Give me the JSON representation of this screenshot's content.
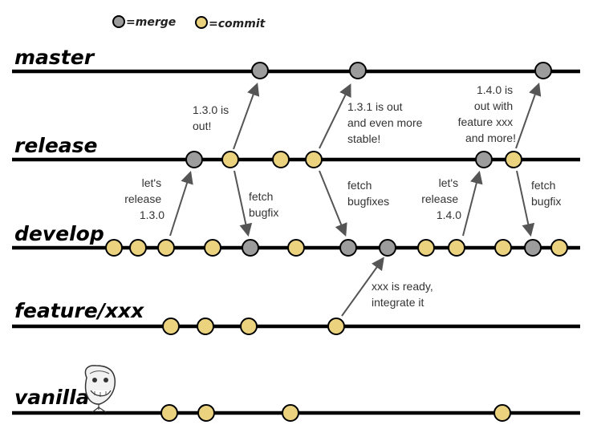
{
  "legend": [
    {
      "kind": "merge",
      "label": "=merge"
    },
    {
      "kind": "commit",
      "label": "=commit"
    }
  ],
  "colors": {
    "merge": "#9c9c9c",
    "commit": "#ead27e",
    "line": "#000000",
    "arrow": "#555555"
  },
  "branches": [
    {
      "id": "master",
      "label": "master"
    },
    {
      "id": "release",
      "label": "release"
    },
    {
      "id": "develop",
      "label": "develop"
    },
    {
      "id": "feature",
      "label": "feature/xxx"
    },
    {
      "id": "vanilla",
      "label": "vanilla"
    }
  ],
  "nodes": {
    "master": [
      "merge",
      "merge",
      "merge"
    ],
    "release": [
      "merge",
      "commit",
      "commit",
      "commit",
      "merge",
      "commit"
    ],
    "develop": [
      "commit",
      "commit",
      "commit",
      "commit",
      "merge",
      "commit",
      "merge",
      "merge",
      "commit",
      "commit",
      "commit",
      "merge",
      "commit"
    ],
    "feature": [
      "commit",
      "commit",
      "commit",
      "commit"
    ],
    "vanilla": [
      "commit",
      "commit",
      "commit",
      "commit"
    ]
  },
  "annotations": [
    {
      "id": "lets-release-130",
      "lines": [
        "let's",
        "release",
        "1.3.0"
      ]
    },
    {
      "id": "130-out",
      "lines": [
        "1.3.0 is",
        "out!"
      ]
    },
    {
      "id": "fetch-bugfix-1",
      "lines": [
        "fetch",
        "bugfix"
      ]
    },
    {
      "id": "131-out",
      "lines": [
        "1.3.1 is out",
        "and even more",
        "stable!"
      ]
    },
    {
      "id": "fetch-bugfixes",
      "lines": [
        "fetch",
        "bugfixes"
      ]
    },
    {
      "id": "lets-release-140",
      "lines": [
        "let's",
        "release",
        "1.4.0"
      ]
    },
    {
      "id": "140-out",
      "lines": [
        "1.4.0 is",
        "out with",
        "feature xxx",
        "and more!"
      ]
    },
    {
      "id": "fetch-bugfix-2",
      "lines": [
        "fetch",
        "bugfix"
      ]
    },
    {
      "id": "xxx-ready",
      "lines": [
        "xxx is ready,",
        "integrate it"
      ]
    }
  ],
  "mascot": {
    "icon": "forever-alone-face-icon"
  }
}
